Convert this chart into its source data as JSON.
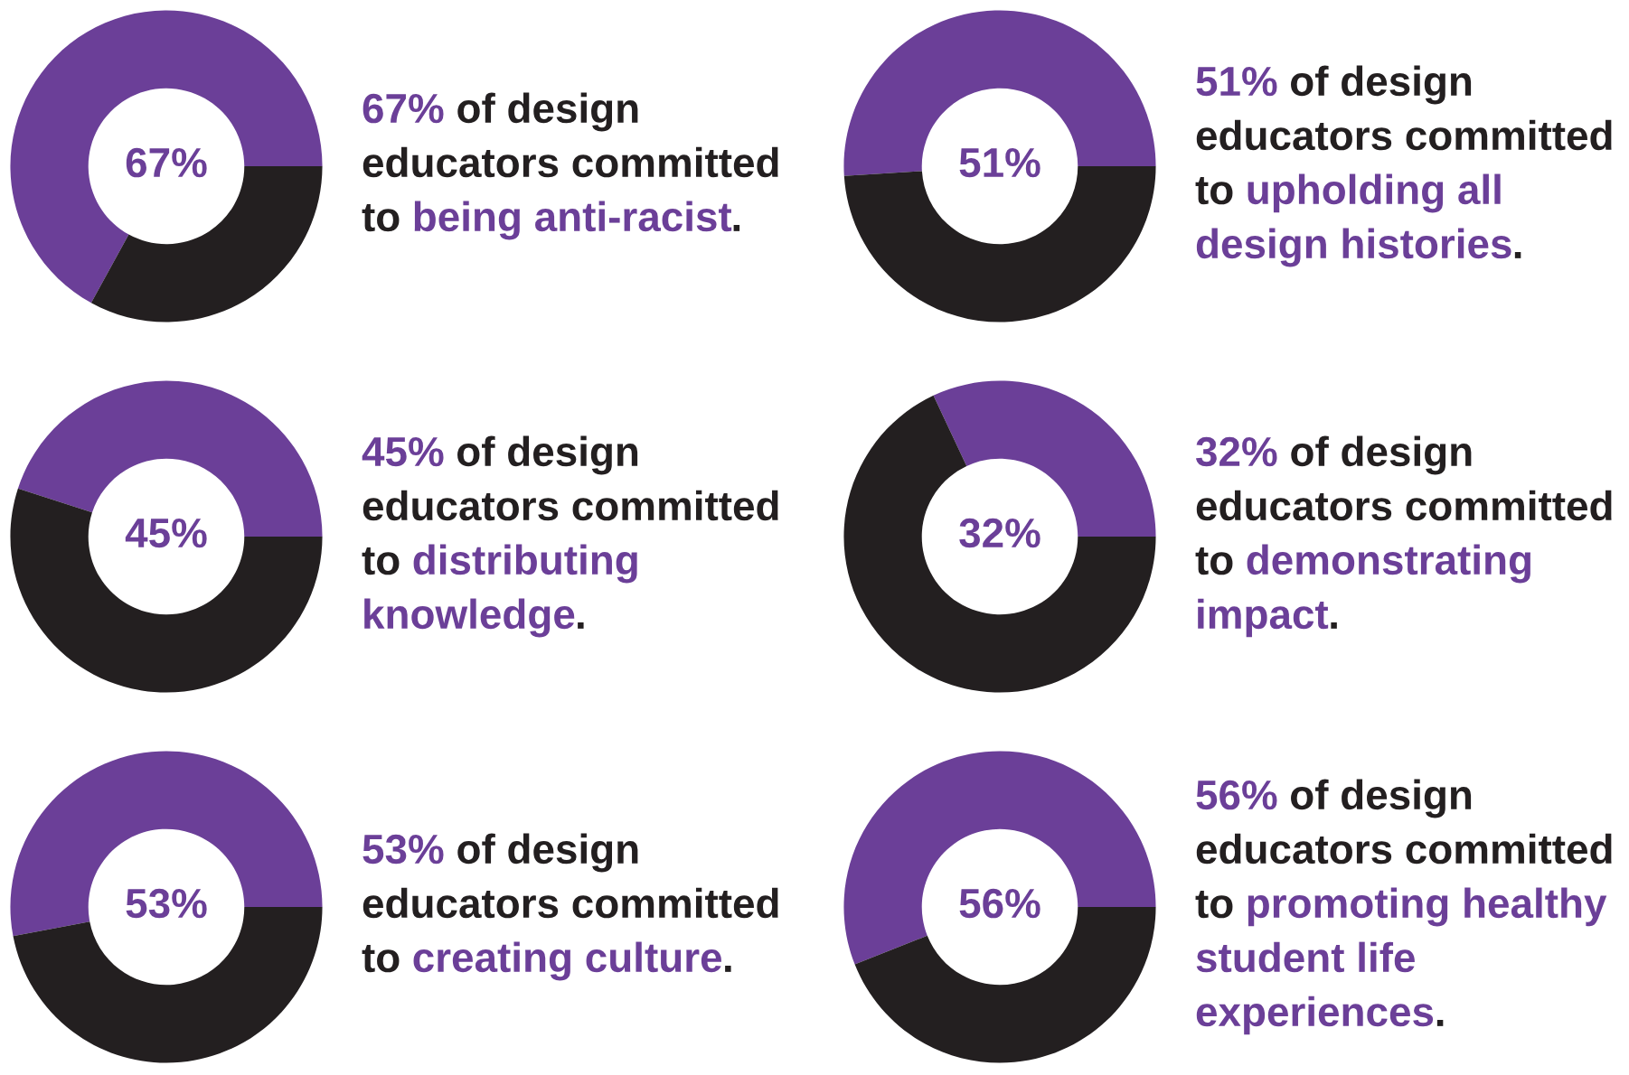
{
  "chart_data": [
    {
      "type": "donut",
      "categories": [
        null,
        null
      ],
      "values": [
        67,
        33
      ],
      "colors": [
        "#6b3f98",
        "#231f20"
      ],
      "value_labels": [
        "67%",
        null
      ],
      "annotations": [
        "67%",
        " of design educators committed to ",
        "being anti-racist",
        "."
      ]
    },
    {
      "type": "donut",
      "categories": [
        null,
        null
      ],
      "values": [
        51,
        49
      ],
      "colors": [
        "#6b3f98",
        "#231f20"
      ],
      "value_labels": [
        "51%",
        null
      ],
      "annotations": [
        "51%",
        " of design educators committed to ",
        "upholding all design histories",
        "."
      ]
    },
    {
      "type": "donut",
      "categories": [
        null,
        null
      ],
      "values": [
        45,
        55
      ],
      "colors": [
        "#6b3f98",
        "#231f20"
      ],
      "value_labels": [
        "45%",
        null
      ],
      "annotations": [
        "45%",
        " of design educators committed to ",
        "distributing knowledge",
        "."
      ]
    },
    {
      "type": "donut",
      "categories": [
        null,
        null
      ],
      "values": [
        32,
        68
      ],
      "colors": [
        "#6b3f98",
        "#231f20"
      ],
      "value_labels": [
        "32%",
        null
      ],
      "annotations": [
        "32%",
        " of design educators committed to ",
        "demonstrating impact",
        "."
      ]
    },
    {
      "type": "donut",
      "categories": [
        null,
        null
      ],
      "values": [
        53,
        47
      ],
      "colors": [
        "#6b3f98",
        "#231f20"
      ],
      "value_labels": [
        "53%",
        null
      ],
      "annotations": [
        "53%",
        " of design educators committed to ",
        "creating culture",
        "."
      ]
    },
    {
      "type": "donut",
      "categories": [
        null,
        null
      ],
      "values": [
        56,
        44
      ],
      "colors": [
        "#6b3f98",
        "#231f20"
      ],
      "value_labels": [
        "56%",
        null
      ],
      "annotations": [
        "56%",
        " of design educators committed to ",
        "promoting healthy student life experiences",
        "."
      ]
    }
  ]
}
